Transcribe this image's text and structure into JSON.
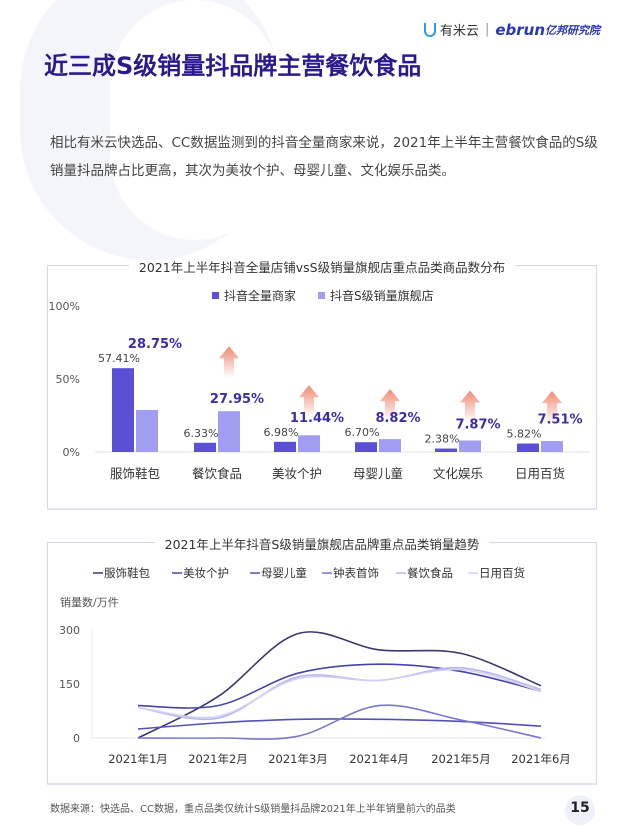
{
  "header": {
    "logo_left": "有米云",
    "logo_right_latin": "ebrun",
    "logo_right_cn": "亿邦研究院"
  },
  "title": "近三成S级销量抖品牌主营餐饮食品",
  "paragraph": "相比有米云快选品、CC数据监测到的抖音全量商家来说，2021年上半年主营餐饮食品的S级销量抖品牌占比更高，其次为美妆个护、母婴儿童、文化娱乐品类。",
  "footer": {
    "source": "数据来源：快选品、CC数据，重点品类仅统计S级销量抖品牌2021年上半年销量前六的品类",
    "page": "15"
  },
  "colors": {
    "title": "#2a1a8c",
    "bar_all": "#5b4fd6",
    "bar_s": "#a09df2",
    "arrow": "#f08a74"
  },
  "chart_data": [
    {
      "type": "bar",
      "title": "2021年上半年抖音全量店铺vsS级销量旗舰店重点品类商品数分布",
      "categories": [
        "服饰鞋包",
        "餐饮食品",
        "美妆个护",
        "母婴儿童",
        "文化娱乐",
        "日用百货"
      ],
      "series": [
        {
          "name": "抖音全量商家",
          "values": [
            57.41,
            6.33,
            6.98,
            6.7,
            2.38,
            5.82
          ],
          "labels": [
            "57.41%",
            "6.33%",
            "6.98%",
            "6.70%",
            "2.38%",
            "5.82%"
          ]
        },
        {
          "name": "抖音S级销量旗舰店",
          "values": [
            28.75,
            27.95,
            11.44,
            8.82,
            7.87,
            7.51
          ],
          "labels": [
            "28.75%",
            "27.95%",
            "11.44%",
            "8.82%",
            "7.87%",
            "7.51%"
          ]
        }
      ],
      "yticks": [
        "0%",
        "50%",
        "100%"
      ],
      "ylim": [
        0,
        100
      ],
      "legend": "top",
      "up_arrows": [
        false,
        true,
        true,
        true,
        true,
        true
      ]
    },
    {
      "type": "line",
      "title": "2021年上半年抖音S级销量旗舰店品牌重点品类销量趋势",
      "ylabel": "销量数/万件",
      "categories": [
        "2021年1月",
        "2021年2月",
        "2021年3月",
        "2021年4月",
        "2021年5月",
        "2021年6月"
      ],
      "yticks": [
        "0",
        "150",
        "300"
      ],
      "ylim": [
        0,
        300
      ],
      "legend": "top",
      "series": [
        {
          "name": "服饰鞋包",
          "color": "#3b386f",
          "values": [
            0,
            115,
            290,
            245,
            235,
            145
          ]
        },
        {
          "name": "美妆个护",
          "color": "#4744a3",
          "values": [
            90,
            90,
            180,
            205,
            185,
            130
          ]
        },
        {
          "name": "母婴儿童",
          "color": "#5551b5",
          "values": [
            25,
            42,
            52,
            52,
            46,
            33
          ]
        },
        {
          "name": "钟表首饰",
          "color": "#7b77cc",
          "values": [
            0,
            0,
            5,
            90,
            50,
            0
          ]
        },
        {
          "name": "餐饮食品",
          "color": "#b9b7e8",
          "values": [
            85,
            55,
            170,
            160,
            195,
            135
          ]
        },
        {
          "name": "日用百货",
          "color": "#d2d0f2",
          "values": [
            85,
            60,
            165,
            160,
            190,
            130
          ]
        }
      ]
    }
  ]
}
